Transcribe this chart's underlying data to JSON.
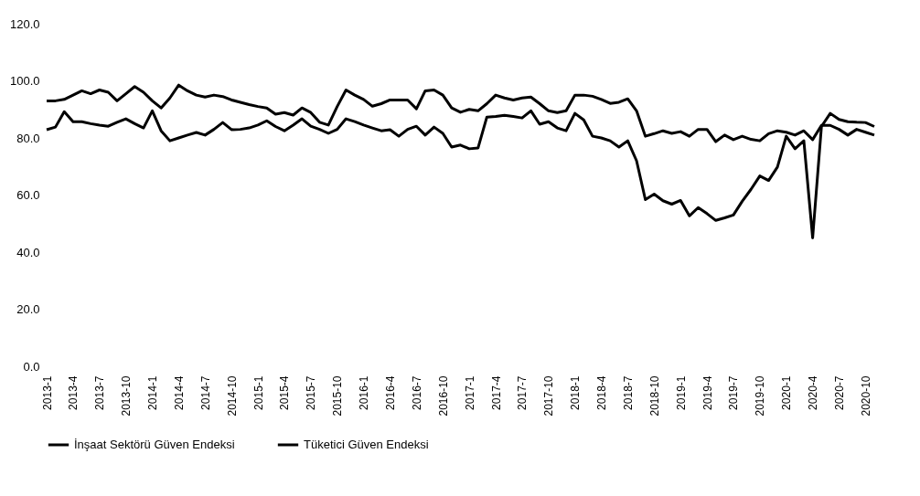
{
  "chart_data": {
    "type": "line",
    "categories": [
      "2013-1",
      null,
      null,
      "2013-4",
      null,
      null,
      "2013-7",
      null,
      null,
      "2013-10",
      null,
      null,
      "2014-1",
      null,
      null,
      "2014-4",
      null,
      null,
      "2014-7",
      null,
      null,
      "2014-10",
      null,
      null,
      "2015-1",
      null,
      null,
      "2015-4",
      null,
      null,
      "2015-7",
      null,
      null,
      "2015-10",
      null,
      null,
      "2016-1",
      null,
      null,
      "2016-4",
      null,
      null,
      "2016-7",
      null,
      null,
      "2016-10",
      null,
      null,
      "2017-1",
      null,
      null,
      "2017-4",
      null,
      null,
      "2017-7",
      null,
      null,
      "2017-10",
      null,
      null,
      "2018-1",
      null,
      null,
      "2018-4",
      null,
      null,
      "2018-7",
      null,
      null,
      "2018-10",
      null,
      null,
      "2019-1",
      null,
      null,
      "2019-4",
      null,
      null,
      "2019-7",
      null,
      null,
      "2019-10",
      null,
      null,
      "2020-1",
      null,
      null,
      "2020-4",
      null,
      null,
      "2020-7",
      null,
      null,
      "2020-10",
      null
    ],
    "series": [
      {
        "name": "İnşaat Sektörü Güven Endeksi",
        "color": "#000000",
        "values": [
          82.9,
          83.8,
          89.2,
          85.7,
          85.7,
          85,
          84.5,
          84.1,
          85.5,
          86.7,
          85,
          83.5,
          89.5,
          82.5,
          79,
          80,
          81,
          81.9,
          81,
          83,
          85.4,
          82.9,
          83,
          83.5,
          84.5,
          86,
          84,
          82.5,
          84.5,
          86.7,
          84.1,
          83,
          81.6,
          83,
          86.7,
          85.7,
          84.5,
          83.5,
          82.5,
          82.9,
          80.6,
          83,
          84.1,
          81,
          83.8,
          81.6,
          76.8,
          77.5,
          76.2,
          76.5,
          87.3,
          87.5,
          87.9,
          87.5,
          87,
          89.5,
          84.8,
          85.7,
          83.5,
          82.5,
          88.6,
          86.3,
          80.6,
          80,
          79,
          76.8,
          79,
          72,
          58.4,
          60.3,
          58,
          56.8,
          58.1,
          52.7,
          55.6,
          53.5,
          51.1,
          52,
          53,
          57.8,
          62,
          66.7,
          65.1,
          69.8,
          80.6,
          76.2,
          79,
          45,
          84,
          88.6,
          86.5,
          85.7,
          85.5,
          85.4,
          84
        ]
      },
      {
        "name": "Tüketici Güven Endeksi",
        "color": "#000000",
        "values": [
          93,
          93,
          93.5,
          95,
          96.5,
          95.5,
          96.8,
          96,
          93,
          95.5,
          98,
          96,
          93,
          90.5,
          94,
          98.5,
          96.5,
          95,
          94.3,
          95,
          94.5,
          93.3,
          92.5,
          91.7,
          91,
          90.5,
          88.3,
          88.9,
          88,
          90.5,
          88.9,
          85.5,
          84.5,
          91,
          96.8,
          95,
          93.5,
          91.1,
          92,
          93.3,
          93.3,
          93.3,
          90.2,
          96.5,
          96.8,
          95,
          90.5,
          89,
          90,
          89.5,
          92,
          95,
          94,
          93.3,
          94,
          94.3,
          92,
          89.5,
          88.9,
          89.5,
          95,
          95,
          94.6,
          93.5,
          92.1,
          92.5,
          93.7,
          89.5,
          80.6,
          81.5,
          82.5,
          81.6,
          82.2,
          80.6,
          83,
          83,
          78.7,
          81,
          79.4,
          80.6,
          79.5,
          79,
          81.5,
          82.5,
          82,
          81,
          82.5,
          79.4,
          84.4,
          84.4,
          83,
          81,
          83,
          82,
          81
        ]
      }
    ],
    "ylim": [
      0,
      120
    ],
    "yticks": [
      {
        "value": 0,
        "label": "0.0"
      },
      {
        "value": 20,
        "label": "20.0"
      },
      {
        "value": 40,
        "label": "40.0"
      },
      {
        "value": 60,
        "label": "60.0"
      },
      {
        "value": 80,
        "label": "80.0"
      },
      {
        "value": 100,
        "label": "100.0"
      },
      {
        "value": 120,
        "label": "120.0"
      }
    ],
    "grid": false,
    "legend": "bottom",
    "marker": "none",
    "line_style": "solid"
  }
}
